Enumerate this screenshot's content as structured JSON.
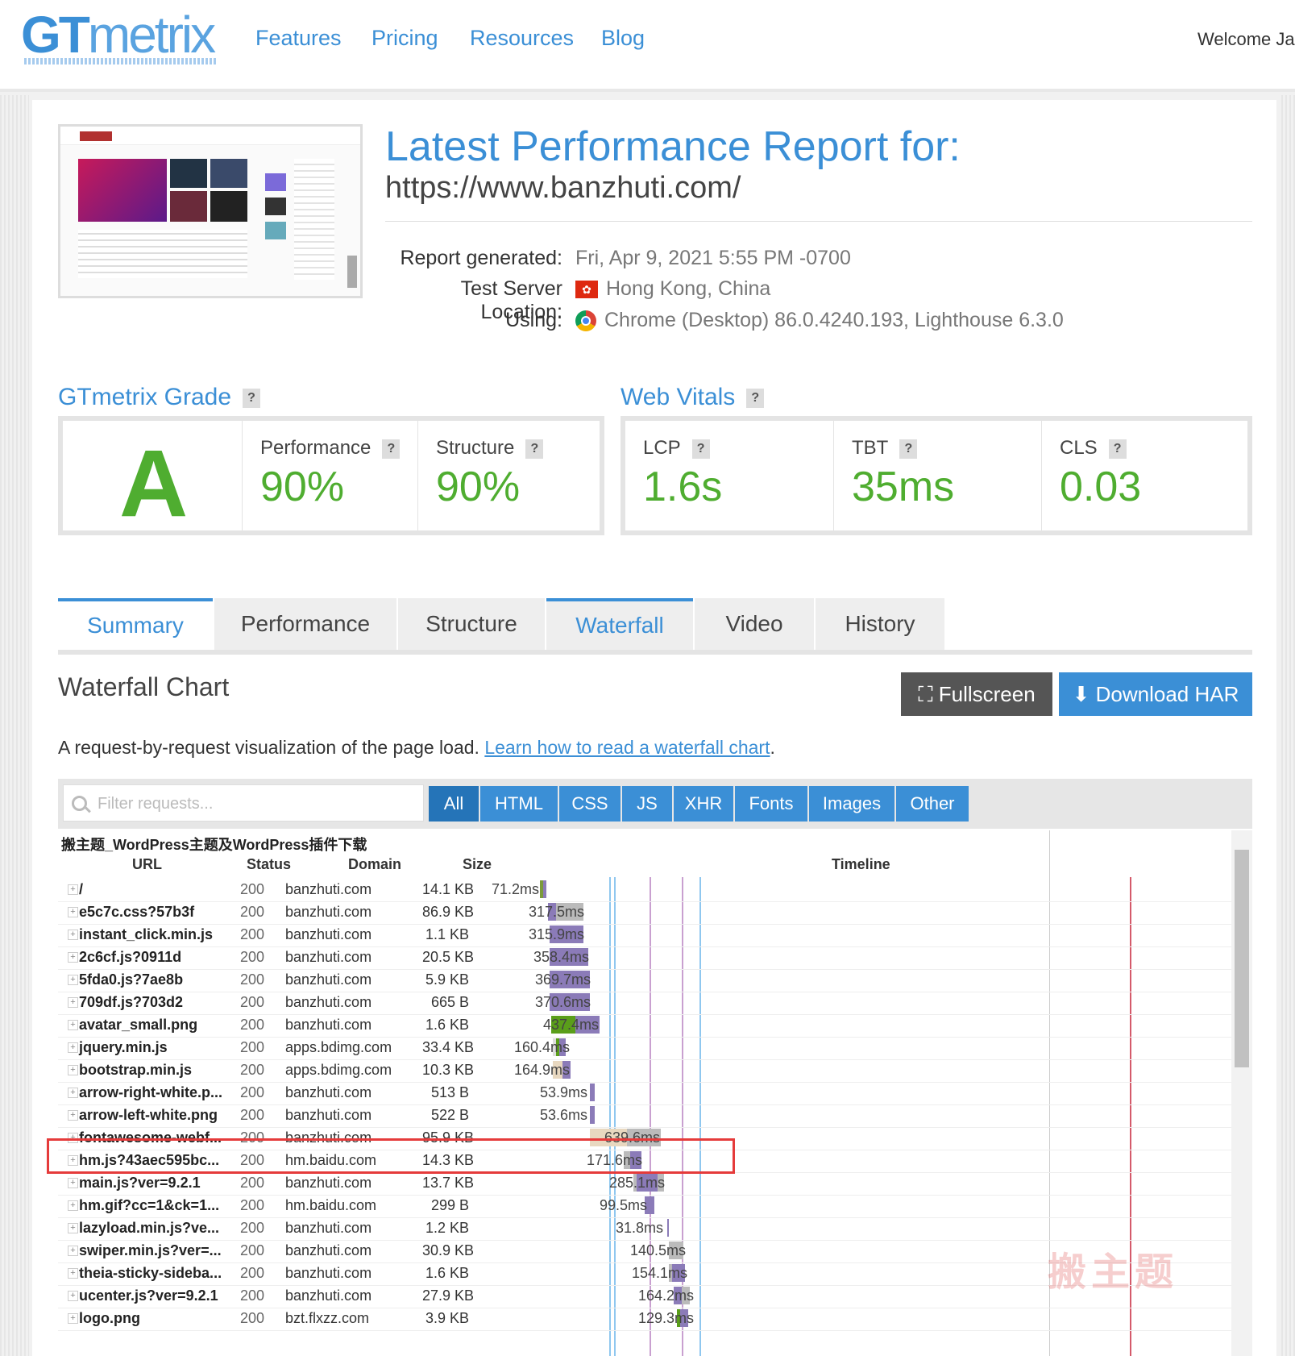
{
  "header": {
    "logo_gt": "GT",
    "logo_metrix": "metrix",
    "nav": [
      "Features",
      "Pricing",
      "Resources",
      "Blog"
    ],
    "welcome": "Welcome Jac"
  },
  "report": {
    "title": "Latest Performance Report for:",
    "url": "https://www.banzhuti.com/",
    "generated_label": "Report generated:",
    "generated_value": "Fri, Apr 9, 2021 5:55 PM -0700",
    "location_label": "Test Server Location:",
    "location_value": "Hong Kong, China",
    "using_label": "Using:",
    "using_value": "Chrome (Desktop) 86.0.4240.193, Lighthouse 6.3.0"
  },
  "grade": {
    "title": "GTmetrix Grade",
    "letter": "A",
    "performance_label": "Performance",
    "performance_value": "90%",
    "structure_label": "Structure",
    "structure_value": "90%"
  },
  "vitals": {
    "title": "Web Vitals",
    "lcp_label": "LCP",
    "lcp_value": "1.6s",
    "tbt_label": "TBT",
    "tbt_value": "35ms",
    "cls_label": "CLS",
    "cls_value": "0.03"
  },
  "tabs": [
    "Summary",
    "Performance",
    "Structure",
    "Waterfall",
    "Video",
    "History"
  ],
  "waterfall": {
    "title": "Waterfall Chart",
    "fullscreen": "Fullscreen",
    "download": "Download HAR",
    "desc": "A request-by-request visualization of the page load. ",
    "learn_link": "Learn how to read a waterfall chart",
    "filter_placeholder": "Filter requests...",
    "filters": [
      "All",
      "HTML",
      "CSS",
      "JS",
      "XHR",
      "Fonts",
      "Images",
      "Other"
    ],
    "page_caption": "搬主题_WordPress主题及WordPress插件下载",
    "columns": [
      "URL",
      "Status",
      "Domain",
      "Size",
      "Timeline"
    ],
    "rows": [
      {
        "url": "/",
        "status": "200",
        "domain": "banzhuti.com",
        "size": "14.1 KB",
        "time": "71.2ms"
      },
      {
        "url": "e5c7c.css?57b3f",
        "status": "200",
        "domain": "banzhuti.com",
        "size": "86.9 KB",
        "time": "317.5ms"
      },
      {
        "url": "instant_click.min.js",
        "status": "200",
        "domain": "banzhuti.com",
        "size": "1.1 KB",
        "time": "315.9ms"
      },
      {
        "url": "2c6cf.js?0911d",
        "status": "200",
        "domain": "banzhuti.com",
        "size": "20.5 KB",
        "time": "358.4ms"
      },
      {
        "url": "5fda0.js?7ae8b",
        "status": "200",
        "domain": "banzhuti.com",
        "size": "5.9 KB",
        "time": "369.7ms"
      },
      {
        "url": "709df.js?703d2",
        "status": "200",
        "domain": "banzhuti.com",
        "size": "665 B",
        "time": "370.6ms"
      },
      {
        "url": "avatar_small.png",
        "status": "200",
        "domain": "banzhuti.com",
        "size": "1.6 KB",
        "time": "437.4ms"
      },
      {
        "url": "jquery.min.js",
        "status": "200",
        "domain": "apps.bdimg.com",
        "size": "33.4 KB",
        "time": "160.4ms"
      },
      {
        "url": "bootstrap.min.js",
        "status": "200",
        "domain": "apps.bdimg.com",
        "size": "10.3 KB",
        "time": "164.9ms"
      },
      {
        "url": "arrow-right-white.p...",
        "status": "200",
        "domain": "banzhuti.com",
        "size": "513 B",
        "time": "53.9ms"
      },
      {
        "url": "arrow-left-white.png",
        "status": "200",
        "domain": "banzhuti.com",
        "size": "522 B",
        "time": "53.6ms"
      },
      {
        "url": "fontawesome-webf...",
        "status": "200",
        "domain": "banzhuti.com",
        "size": "95.9 KB",
        "time": "639.6ms"
      },
      {
        "url": "hm.js?43aec595bc...",
        "status": "200",
        "domain": "hm.baidu.com",
        "size": "14.3 KB",
        "time": "171.6ms"
      },
      {
        "url": "main.js?ver=9.2.1",
        "status": "200",
        "domain": "banzhuti.com",
        "size": "13.7 KB",
        "time": "285.1ms"
      },
      {
        "url": "hm.gif?cc=1&ck=1...",
        "status": "200",
        "domain": "hm.baidu.com",
        "size": "299 B",
        "time": "99.5ms"
      },
      {
        "url": "lazyload.min.js?ve...",
        "status": "200",
        "domain": "banzhuti.com",
        "size": "1.2 KB",
        "time": "31.8ms"
      },
      {
        "url": "swiper.min.js?ver=...",
        "status": "200",
        "domain": "banzhuti.com",
        "size": "30.9 KB",
        "time": "140.5ms"
      },
      {
        "url": "theia-sticky-sideba...",
        "status": "200",
        "domain": "banzhuti.com",
        "size": "1.6 KB",
        "time": "154.1ms"
      },
      {
        "url": "ucenter.js?ver=9.2.1",
        "status": "200",
        "domain": "banzhuti.com",
        "size": "27.9 KB",
        "time": "164.2ms"
      },
      {
        "url": "logo.png",
        "status": "200",
        "domain": "bzt.flxzz.com",
        "size": "3.9 KB",
        "time": "129.3ms"
      }
    ]
  },
  "watermark": "搬主题",
  "colors": {
    "accent": "#3b8fd6",
    "good": "#4fad30",
    "highlight": "#e53b3b"
  }
}
